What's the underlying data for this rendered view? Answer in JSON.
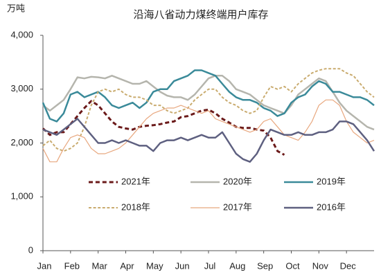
{
  "chart_data": {
    "type": "line",
    "title": "沿海八省动力煤终端用户库存",
    "y_label": "万吨",
    "x": [
      0,
      0.25,
      0.5,
      0.75,
      1,
      1.25,
      1.5,
      1.75,
      2,
      2.25,
      2.5,
      2.75,
      3,
      3.25,
      3.5,
      3.75,
      4,
      4.25,
      4.5,
      4.75,
      5,
      5.25,
      5.5,
      5.75,
      6,
      6.25,
      6.5,
      6.75,
      7,
      7.25,
      7.5,
      7.75,
      8,
      8.25,
      8.5,
      8.75,
      9,
      9.25,
      9.5,
      9.75,
      10,
      10.25,
      10.5,
      10.75,
      11,
      11.25,
      11.5,
      11.75,
      12
    ],
    "xlim": [
      0,
      12
    ],
    "xticks": [
      {
        "value": 0,
        "label": "Jan"
      },
      {
        "value": 1,
        "label": "Feb"
      },
      {
        "value": 2,
        "label": "Mar"
      },
      {
        "value": 3,
        "label": "Apr"
      },
      {
        "value": 4,
        "label": "May"
      },
      {
        "value": 5,
        "label": "Jun"
      },
      {
        "value": 6,
        "label": "Jul"
      },
      {
        "value": 7,
        "label": "Aug"
      },
      {
        "value": 8,
        "label": "Sep"
      },
      {
        "value": 9,
        "label": "Oct"
      },
      {
        "value": 10,
        "label": "Nov"
      },
      {
        "value": 11,
        "label": "Dec"
      }
    ],
    "ylim": [
      0,
      4000
    ],
    "yticks": [
      0,
      {
        "value": 1000,
        "label": "1,000"
      },
      {
        "value": 2000,
        "label": "2,000"
      },
      {
        "value": 3000,
        "label": "3,000"
      },
      {
        "value": 4000,
        "label": "4,000"
      }
    ],
    "series": [
      {
        "name": "2021年",
        "color": "#6b1a1a",
        "line_style": "dashed",
        "values": [
          2270,
          2150,
          2200,
          2200,
          2350,
          2500,
          2650,
          2780,
          2700,
          2550,
          2400,
          2300,
          2270,
          2250,
          2300,
          2320,
          2330,
          2350,
          2380,
          2400,
          2480,
          2500,
          2550,
          2600,
          2620,
          2550,
          2450,
          2380,
          2300,
          2280,
          2280,
          2250,
          2230,
          2100,
          1850,
          1780,
          null,
          null,
          null,
          null,
          null,
          null,
          null,
          null,
          null,
          null,
          null,
          null,
          null
        ]
      },
      {
        "name": "2020年",
        "color": "#b5b5ad",
        "line_style": "solid",
        "values": [
          2700,
          2600,
          2700,
          2800,
          3000,
          3220,
          3200,
          3230,
          3220,
          3200,
          3250,
          3200,
          3150,
          3100,
          3100,
          3150,
          3050,
          2950,
          2880,
          2850,
          2850,
          2800,
          2900,
          3050,
          3200,
          3250,
          3250,
          3150,
          3000,
          2950,
          2900,
          2800,
          2700,
          2650,
          2600,
          2550,
          2700,
          2900,
          3000,
          3100,
          3200,
          3150,
          2950,
          2750,
          2600,
          2500,
          2400,
          2300,
          2250
        ]
      },
      {
        "name": "2019年",
        "color": "#3a8a99",
        "line_style": "solid",
        "values": [
          2750,
          2450,
          2400,
          2550,
          2900,
          2950,
          2850,
          2900,
          2950,
          2850,
          2700,
          2650,
          2700,
          2750,
          2650,
          2750,
          2950,
          3000,
          3000,
          3150,
          3200,
          3250,
          3350,
          3350,
          3300,
          3250,
          3100,
          2950,
          2850,
          2800,
          2800,
          2750,
          2650,
          2600,
          2500,
          2550,
          2750,
          2850,
          2900,
          3050,
          3150,
          3100,
          2950,
          2950,
          2900,
          2850,
          2850,
          2800,
          2700
        ]
      },
      {
        "name": "2018年",
        "color": "#c9ab6e",
        "line_style": "dashed",
        "values": [
          1950,
          2050,
          1900,
          1850,
          1900,
          2000,
          2300,
          2700,
          2950,
          3000,
          2950,
          3000,
          2900,
          2850,
          2850,
          2800,
          2700,
          2700,
          2600,
          2550,
          2600,
          2650,
          2800,
          2900,
          3000,
          3000,
          2850,
          2750,
          2700,
          2600,
          2550,
          2600,
          2850,
          3050,
          3000,
          3050,
          2950,
          3100,
          3200,
          3300,
          3350,
          3380,
          3380,
          3380,
          3300,
          3250,
          3100,
          2950,
          2850
        ]
      },
      {
        "name": "2017年",
        "color": "#e8a77e",
        "line_style": "solid",
        "values": [
          1900,
          1650,
          1650,
          1900,
          2100,
          2150,
          2100,
          1900,
          1800,
          1800,
          1850,
          1900,
          2000,
          2150,
          2300,
          2450,
          2550,
          2600,
          2650,
          2650,
          2700,
          2650,
          2600,
          2550,
          2600,
          2450,
          2400,
          2350,
          2300,
          2250,
          2200,
          2250,
          2400,
          2450,
          2300,
          2150,
          2100,
          2050,
          2200,
          2400,
          2700,
          2800,
          2800,
          2700,
          2400,
          2200,
          2100,
          2000,
          2050
        ]
      },
      {
        "name": "2016年",
        "color": "#5e6080",
        "line_style": "solid",
        "values": [
          2250,
          2200,
          2150,
          2250,
          2350,
          2450,
          2300,
          2150,
          2000,
          2000,
          2050,
          2000,
          2050,
          2000,
          1950,
          1950,
          1850,
          2000,
          2050,
          2050,
          2100,
          2050,
          2100,
          2150,
          2100,
          2100,
          2200,
          2000,
          1800,
          1700,
          1650,
          1800,
          2050,
          2250,
          2200,
          2150,
          2150,
          2200,
          2150,
          2150,
          2200,
          2200,
          2250,
          2400,
          2400,
          2350,
          2200,
          2050,
          1850
        ]
      }
    ]
  }
}
